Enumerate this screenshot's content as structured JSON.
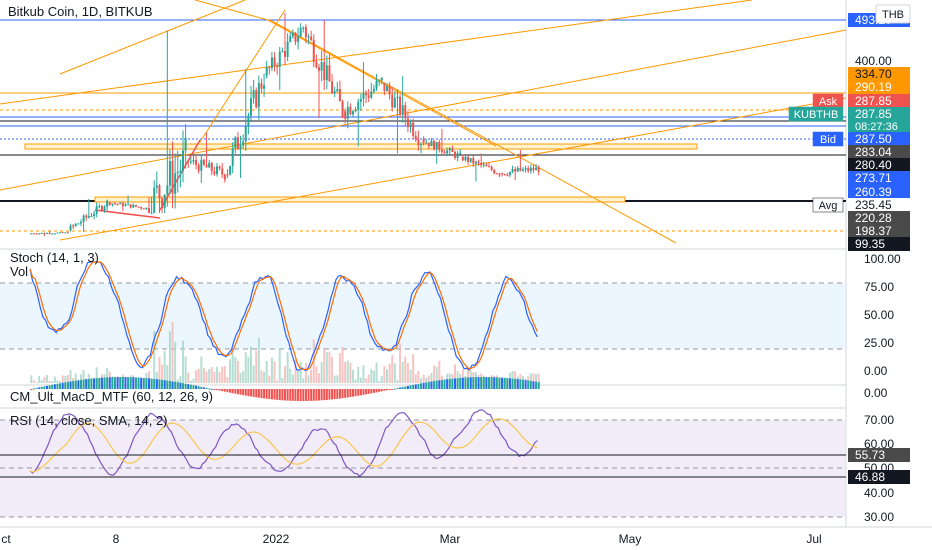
{
  "header": {
    "symbol": "Bitkub Coin, 1D, BITKUB",
    "currency": "THB"
  },
  "colors": {
    "up": "#26a69a",
    "down": "#ef5350",
    "orange": "#ff9800",
    "blue": "#2962ff",
    "stoch_k": "#2962ff",
    "stoch_d": "#ff6d00",
    "rsi": "#7e57c2",
    "rsi_ma": "#f9c74f"
  },
  "price_labels": [
    {
      "text": "493.10",
      "value": 493.1,
      "bg": "#2962ff",
      "fg": "#ffffff"
    },
    {
      "text": "400.00",
      "value": 400,
      "bg": "",
      "fg": "#131722"
    },
    {
      "text": "334.70",
      "value": 334.7,
      "bg": "#ff9800",
      "fg": "#131722"
    },
    {
      "text": "290.19",
      "value": 290.19,
      "bg": "#ff9800",
      "fg": "#ffffff"
    },
    {
      "text": "287.85",
      "value": 287.85,
      "bg": "#ef5350",
      "fg": "#ffffff",
      "tag": "Ask",
      "tag_bg": "#ef5350"
    },
    {
      "text": "287.85",
      "value": 287.85,
      "bg": "#26a69a",
      "fg": "#ffffff",
      "tag": "KUBTHB",
      "tag_bg": "#26a69a",
      "sub": "08:27:36"
    },
    {
      "text": "287.50",
      "value": 287.5,
      "bg": "#2962ff",
      "fg": "#ffffff",
      "tag": "Bid",
      "tag_bg": "#2962ff"
    },
    {
      "text": "283.04",
      "value": 283.04,
      "bg": "#4a4a4a",
      "fg": "#ffffff"
    },
    {
      "text": "280.40",
      "value": 280.4,
      "bg": "#131722",
      "fg": "#ffffff"
    },
    {
      "text": "273.71",
      "value": 273.71,
      "bg": "#2962ff",
      "fg": "#ffffff"
    },
    {
      "text": "260.39",
      "value": 260.39,
      "bg": "#2962ff",
      "fg": "#ffffff"
    },
    {
      "text": "235.45",
      "value": 235.45,
      "bg": "#ffffff",
      "fg": "#131722",
      "tag": "Avg",
      "tag_bg": "#ffffff"
    },
    {
      "text": "220.28",
      "value": 220.28,
      "bg": "#4a4a4a",
      "fg": "#ffffff"
    },
    {
      "text": "198.37",
      "value": 198.37,
      "bg": "#4a4a4a",
      "fg": "#ffffff"
    },
    {
      "text": "99.35",
      "value": 99.35,
      "bg": "#131722",
      "fg": "#ffffff"
    }
  ],
  "stoch": {
    "title": "Stoch (14, 1, 3)",
    "vol_title": "Vol",
    "ticks": [
      "100.00",
      "75.00",
      "50.00",
      "25.00",
      "0.00"
    ],
    "upper": 80,
    "lower": 20
  },
  "macd": {
    "title": "CM_Ult_MacD_MTF (60, 12, 26, 9)",
    "tick": "0.00"
  },
  "rsi": {
    "title": "RSI (14, close, SMA, 14, 2)",
    "ticks": [
      "70.00",
      "60.00",
      "50.00",
      "40.00",
      "30.00"
    ],
    "value_label": "55.73",
    "ma_label": "46.88",
    "upper": 70,
    "mid": 50,
    "lower": 30
  },
  "x_axis": {
    "labels": [
      "ct",
      "8",
      "2022",
      "Mar",
      "May",
      "Jul"
    ]
  },
  "chart_data": {
    "type": "candlestick",
    "title": "Bitkub Coin, 1D, BITKUB",
    "xlabel": "",
    "ylabel": "",
    "x_ticks": [
      "ct",
      "8",
      "2022",
      "Mar",
      "May",
      "Jul"
    ],
    "y_ticks": [
      "493.10",
      "400.00",
      "334.70",
      "290.19",
      "287.85",
      "287.50",
      "283.04",
      "280.40",
      "273.71",
      "260.39",
      "235.45",
      "220.28",
      "198.37"
    ],
    "series": [
      {
        "period": "Oct",
        "open": 196,
        "high": 200,
        "low": 192,
        "close": 197
      },
      {
        "period": "Nov-early",
        "open": 200,
        "high": 245,
        "low": 198,
        "close": 240
      },
      {
        "period": "Nov-mid",
        "open": 240,
        "high": 250,
        "low": 228,
        "close": 232
      },
      {
        "period": "Nov-late",
        "open": 232,
        "high": 485,
        "low": 225,
        "close": 300
      },
      {
        "period": "Dec-early",
        "open": 300,
        "high": 340,
        "low": 268,
        "close": 280
      },
      {
        "period": "Dec-mid",
        "open": 280,
        "high": 430,
        "low": 275,
        "close": 420
      },
      {
        "period": "Dec-late",
        "open": 420,
        "high": 510,
        "low": 400,
        "close": 490
      },
      {
        "period": "Jan-early",
        "open": 490,
        "high": 500,
        "low": 360,
        "close": 370
      },
      {
        "period": "Jan-mid",
        "open": 370,
        "high": 440,
        "low": 320,
        "close": 410
      },
      {
        "period": "Jan-late",
        "open": 410,
        "high": 420,
        "low": 310,
        "close": 330
      },
      {
        "period": "Feb",
        "open": 330,
        "high": 345,
        "low": 295,
        "close": 305
      },
      {
        "period": "Mar",
        "open": 305,
        "high": 310,
        "low": 270,
        "close": 282
      },
      {
        "period": "Apr",
        "open": 282,
        "high": 315,
        "low": 272,
        "close": 288
      }
    ]
  }
}
